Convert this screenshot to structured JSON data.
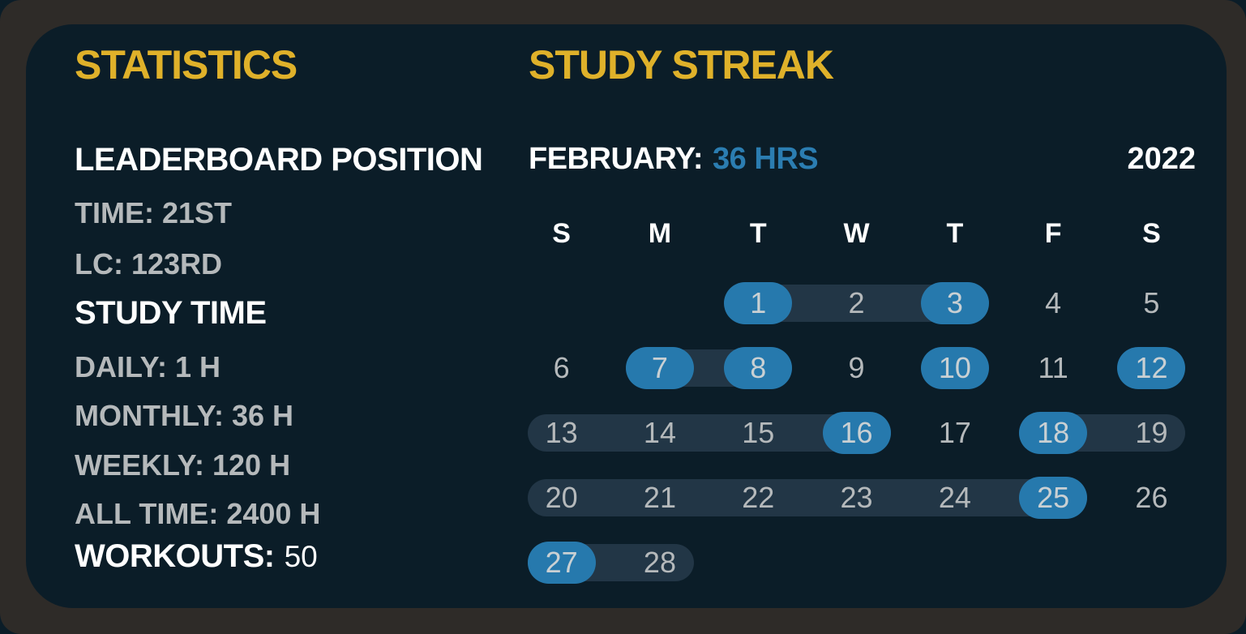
{
  "colors": {
    "panel_bg": "#0b1d28",
    "frame_bg": "#2e2b28",
    "accent_yellow": "#dfb12a",
    "accent_blue": "#2679ad",
    "blue_text": "#2b7db1",
    "streak_bar_bg": "#223646",
    "text_primary": "#ffffff",
    "text_muted": "#b5b9bb"
  },
  "statistics": {
    "title": "STATISTICS",
    "sections": [
      {
        "type": "heading",
        "text": "LEADERBOARD POSITION"
      },
      {
        "type": "stat",
        "text": "TIME: 21ST"
      },
      {
        "type": "stat",
        "text": "LC: 123RD"
      },
      {
        "type": "heading",
        "text": "STUDY TIME"
      },
      {
        "type": "stat",
        "text": "DAILY: 1 H"
      },
      {
        "type": "stat",
        "text": "MONTHLY: 36 H"
      },
      {
        "type": "stat",
        "text": "WEEKLY: 120 H"
      },
      {
        "type": "stat",
        "text": "ALL TIME: 2400 H"
      },
      {
        "type": "workouts",
        "label": "WORKOUTS:",
        "value": "50"
      }
    ]
  },
  "study_streak": {
    "title": "STUDY STREAK",
    "month_label": "FEBRUARY:",
    "month_hours": "36 HRS",
    "year": "2022",
    "day_headers": [
      "S",
      "M",
      "T",
      "W",
      "T",
      "F",
      "S"
    ],
    "first_day_column": 2,
    "days_in_month": 28,
    "highlighted_days": [
      1,
      3,
      7,
      8,
      10,
      12,
      16,
      18,
      25,
      27
    ],
    "streak_ranges": [
      [
        1,
        3
      ],
      [
        7,
        8
      ],
      [
        13,
        16
      ],
      [
        18,
        19
      ],
      [
        20,
        25
      ],
      [
        27,
        28
      ]
    ]
  }
}
